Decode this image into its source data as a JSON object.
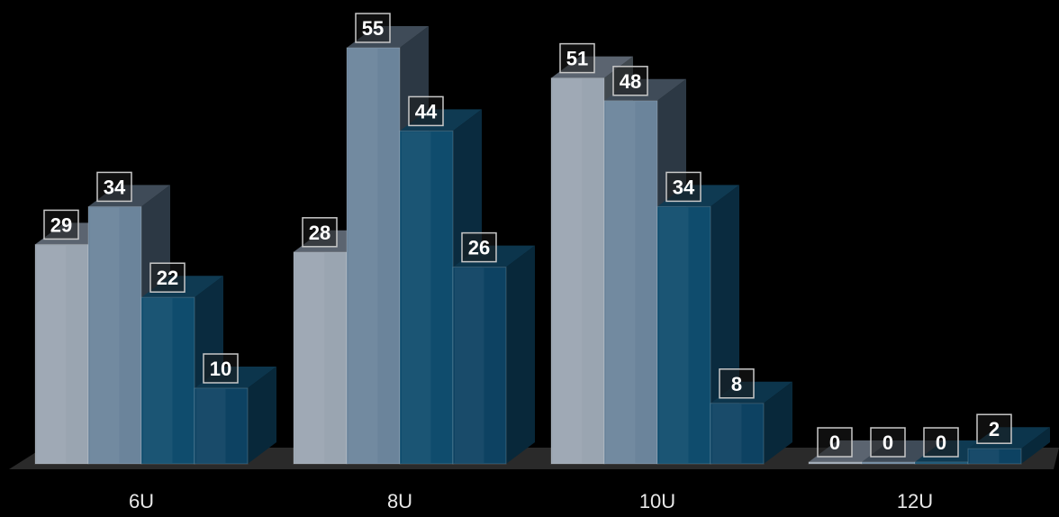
{
  "chart_data": {
    "type": "bar",
    "categories": [
      "6U",
      "8U",
      "10U",
      "12U"
    ],
    "series": [
      {
        "values": [
          29,
          28,
          51,
          0
        ]
      },
      {
        "values": [
          34,
          55,
          48,
          0
        ]
      },
      {
        "values": [
          22,
          44,
          34,
          0
        ]
      },
      {
        "values": [
          10,
          26,
          8,
          2
        ]
      }
    ],
    "ylim": [
      0,
      60
    ],
    "grid": false,
    "legend": "none",
    "colors": {
      "series_front": [
        "#9aa5b1",
        "#6b849b",
        "#0f4c6d",
        "#0d4262"
      ],
      "series_top": [
        "#5b6470",
        "#3f4b58",
        "#0f3a52",
        "#0c354c"
      ],
      "series_side": [
        "#41494f",
        "#2c3844",
        "#0a2b3f",
        "#08283a"
      ],
      "floor": "#2a2a2a",
      "label_fill": "#1b1b1b",
      "label_border": "#c8c8c8"
    }
  }
}
